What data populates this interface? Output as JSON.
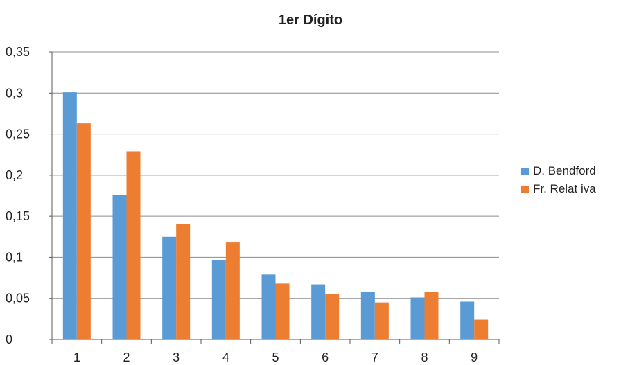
{
  "chart_data": {
    "type": "bar",
    "title": "1er Dígito",
    "xlabel": "",
    "ylabel": "",
    "categories": [
      "1",
      "2",
      "3",
      "4",
      "5",
      "6",
      "7",
      "8",
      "9"
    ],
    "y_ticks": [
      "0",
      "0,05",
      "0,1",
      "0,15",
      "0,2",
      "0,25",
      "0,3",
      "0,35"
    ],
    "ylim": [
      0,
      0.35
    ],
    "grid": "horizontal",
    "legend_position": "right",
    "series": [
      {
        "name": "D. Bendford",
        "color": "#5b9bd5",
        "values": [
          0.301,
          0.176,
          0.125,
          0.097,
          0.079,
          0.067,
          0.058,
          0.051,
          0.046
        ]
      },
      {
        "name": "Fr. Relat iva",
        "color": "#ed7d31",
        "values": [
          0.263,
          0.229,
          0.14,
          0.118,
          0.068,
          0.055,
          0.045,
          0.058,
          0.024
        ]
      }
    ]
  }
}
